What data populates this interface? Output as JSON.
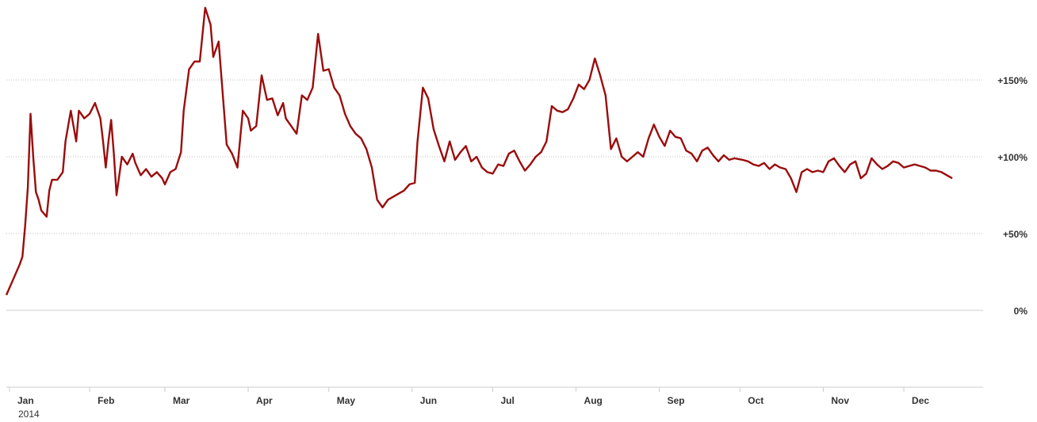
{
  "chart_data": {
    "type": "line",
    "year_label": "2014",
    "x_tick_labels": [
      "Jan",
      "Feb",
      "Mar",
      "Apr",
      "May",
      "Jun",
      "Jul",
      "Aug",
      "Sep",
      "Oct",
      "Nov",
      "Dec"
    ],
    "y_tick_labels": [
      "+150%",
      "+100%",
      "+50%",
      "0%"
    ],
    "y_ticks": [
      150,
      100,
      50,
      0
    ],
    "ylim": [
      -50,
      197
    ],
    "xlim": [
      "2014-01-01",
      "2014-12-24"
    ],
    "grid": "dotted horizontal",
    "series": [
      {
        "color": "#9b0c0c",
        "points": [
          [
            "2014-01-01",
            10
          ],
          [
            "2014-01-04",
            22
          ],
          [
            "2014-01-06",
            30
          ],
          [
            "2014-01-07",
            35
          ],
          [
            "2014-01-08",
            55
          ],
          [
            "2014-01-09",
            80
          ],
          [
            "2014-01-10",
            128
          ],
          [
            "2014-01-11",
            100
          ],
          [
            "2014-01-12",
            77
          ],
          [
            "2014-01-13",
            72
          ],
          [
            "2014-01-14",
            65
          ],
          [
            "2014-01-16",
            61
          ],
          [
            "2014-01-17",
            78
          ],
          [
            "2014-01-18",
            85
          ],
          [
            "2014-01-20",
            85
          ],
          [
            "2014-01-22",
            90
          ],
          [
            "2014-01-23",
            110
          ],
          [
            "2014-01-25",
            130
          ],
          [
            "2014-01-27",
            110
          ],
          [
            "2014-01-28",
            130
          ],
          [
            "2014-01-30",
            125
          ],
          [
            "2014-02-01",
            128
          ],
          [
            "2014-02-03",
            135
          ],
          [
            "2014-02-05",
            125
          ],
          [
            "2014-02-06",
            110
          ],
          [
            "2014-02-07",
            93
          ],
          [
            "2014-02-08",
            110
          ],
          [
            "2014-02-09",
            124
          ],
          [
            "2014-02-10",
            102
          ],
          [
            "2014-02-11",
            75
          ],
          [
            "2014-02-13",
            100
          ],
          [
            "2014-02-15",
            95
          ],
          [
            "2014-02-17",
            102
          ],
          [
            "2014-02-18",
            96
          ],
          [
            "2014-02-20",
            88
          ],
          [
            "2014-02-22",
            92
          ],
          [
            "2014-02-24",
            87
          ],
          [
            "2014-02-26",
            90
          ],
          [
            "2014-02-28",
            86
          ],
          [
            "2014-03-01",
            82
          ],
          [
            "2014-03-03",
            90
          ],
          [
            "2014-03-05",
            92
          ],
          [
            "2014-03-07",
            103
          ],
          [
            "2014-03-08",
            130
          ],
          [
            "2014-03-10",
            157
          ],
          [
            "2014-03-12",
            162
          ],
          [
            "2014-03-14",
            162
          ],
          [
            "2014-03-16",
            197
          ],
          [
            "2014-03-18",
            186
          ],
          [
            "2014-03-19",
            165
          ],
          [
            "2014-03-21",
            175
          ],
          [
            "2014-03-24",
            108
          ],
          [
            "2014-03-26",
            102
          ],
          [
            "2014-03-28",
            93
          ],
          [
            "2014-03-30",
            130
          ],
          [
            "2014-04-01",
            125
          ],
          [
            "2014-04-02",
            117
          ],
          [
            "2014-04-04",
            120
          ],
          [
            "2014-04-06",
            153
          ],
          [
            "2014-04-08",
            137
          ],
          [
            "2014-04-10",
            138
          ],
          [
            "2014-04-12",
            127
          ],
          [
            "2014-04-14",
            135
          ],
          [
            "2014-04-15",
            125
          ],
          [
            "2014-04-17",
            120
          ],
          [
            "2014-04-19",
            115
          ],
          [
            "2014-04-21",
            140
          ],
          [
            "2014-04-23",
            137
          ],
          [
            "2014-04-25",
            145
          ],
          [
            "2014-04-27",
            180
          ],
          [
            "2014-04-29",
            156
          ],
          [
            "2014-05-01",
            157
          ],
          [
            "2014-05-03",
            145
          ],
          [
            "2014-05-05",
            140
          ],
          [
            "2014-05-07",
            128
          ],
          [
            "2014-05-09",
            120
          ],
          [
            "2014-05-11",
            115
          ],
          [
            "2014-05-13",
            112
          ],
          [
            "2014-05-15",
            105
          ],
          [
            "2014-05-17",
            93
          ],
          [
            "2014-05-19",
            72
          ],
          [
            "2014-05-21",
            67
          ],
          [
            "2014-05-23",
            72
          ],
          [
            "2014-05-25",
            74
          ],
          [
            "2014-05-27",
            76
          ],
          [
            "2014-05-29",
            78
          ],
          [
            "2014-05-31",
            82
          ],
          [
            "2014-06-02",
            83
          ],
          [
            "2014-06-03",
            110
          ],
          [
            "2014-06-05",
            145
          ],
          [
            "2014-06-07",
            138
          ],
          [
            "2014-06-09",
            118
          ],
          [
            "2014-06-11",
            107
          ],
          [
            "2014-06-13",
            97
          ],
          [
            "2014-06-15",
            110
          ],
          [
            "2014-06-17",
            98
          ],
          [
            "2014-06-19",
            103
          ],
          [
            "2014-06-21",
            107
          ],
          [
            "2014-06-23",
            97
          ],
          [
            "2014-06-25",
            100
          ],
          [
            "2014-06-27",
            93
          ],
          [
            "2014-06-29",
            90
          ],
          [
            "2014-07-01",
            89
          ],
          [
            "2014-07-03",
            95
          ],
          [
            "2014-07-05",
            94
          ],
          [
            "2014-07-07",
            102
          ],
          [
            "2014-07-09",
            104
          ],
          [
            "2014-07-11",
            97
          ],
          [
            "2014-07-13",
            91
          ],
          [
            "2014-07-15",
            95
          ],
          [
            "2014-07-17",
            100
          ],
          [
            "2014-07-19",
            103
          ],
          [
            "2014-07-21",
            110
          ],
          [
            "2014-07-23",
            133
          ],
          [
            "2014-07-25",
            130
          ],
          [
            "2014-07-27",
            129
          ],
          [
            "2014-07-29",
            131
          ],
          [
            "2014-07-31",
            138
          ],
          [
            "2014-08-02",
            147
          ],
          [
            "2014-08-04",
            144
          ],
          [
            "2014-08-06",
            150
          ],
          [
            "2014-08-08",
            164
          ],
          [
            "2014-08-10",
            153
          ],
          [
            "2014-08-12",
            140
          ],
          [
            "2014-08-14",
            105
          ],
          [
            "2014-08-16",
            112
          ],
          [
            "2014-08-18",
            100
          ],
          [
            "2014-08-20",
            97
          ],
          [
            "2014-08-22",
            100
          ],
          [
            "2014-08-24",
            103
          ],
          [
            "2014-08-26",
            100
          ],
          [
            "2014-08-28",
            112
          ],
          [
            "2014-08-30",
            121
          ],
          [
            "2014-09-01",
            113
          ],
          [
            "2014-09-03",
            107
          ],
          [
            "2014-09-05",
            117
          ],
          [
            "2014-09-07",
            113
          ],
          [
            "2014-09-09",
            112
          ],
          [
            "2014-09-11",
            104
          ],
          [
            "2014-09-13",
            102
          ],
          [
            "2014-09-15",
            97
          ],
          [
            "2014-09-17",
            104
          ],
          [
            "2014-09-19",
            106
          ],
          [
            "2014-09-21",
            101
          ],
          [
            "2014-09-23",
            97
          ],
          [
            "2014-09-25",
            101
          ],
          [
            "2014-09-27",
            98
          ],
          [
            "2014-09-29",
            99
          ],
          [
            "2014-10-02",
            98
          ],
          [
            "2014-10-04",
            97
          ],
          [
            "2014-10-06",
            95
          ],
          [
            "2014-10-08",
            94
          ],
          [
            "2014-10-10",
            96
          ],
          [
            "2014-10-12",
            92
          ],
          [
            "2014-10-14",
            95
          ],
          [
            "2014-10-16",
            93
          ],
          [
            "2014-10-18",
            92
          ],
          [
            "2014-10-20",
            86
          ],
          [
            "2014-10-22",
            77
          ],
          [
            "2014-10-24",
            90
          ],
          [
            "2014-10-26",
            92
          ],
          [
            "2014-10-28",
            90
          ],
          [
            "2014-10-30",
            91
          ],
          [
            "2014-11-01",
            90
          ],
          [
            "2014-11-03",
            97
          ],
          [
            "2014-11-05",
            99
          ],
          [
            "2014-11-07",
            94
          ],
          [
            "2014-11-09",
            90
          ],
          [
            "2014-11-11",
            95
          ],
          [
            "2014-11-13",
            97
          ],
          [
            "2014-11-15",
            86
          ],
          [
            "2014-11-17",
            89
          ],
          [
            "2014-11-19",
            99
          ],
          [
            "2014-11-21",
            95
          ],
          [
            "2014-11-23",
            92
          ],
          [
            "2014-11-25",
            94
          ],
          [
            "2014-11-27",
            97
          ],
          [
            "2014-11-29",
            96
          ],
          [
            "2014-12-01",
            93
          ],
          [
            "2014-12-03",
            94
          ],
          [
            "2014-12-05",
            95
          ],
          [
            "2014-12-07",
            94
          ],
          [
            "2014-12-09",
            93
          ],
          [
            "2014-12-11",
            91
          ],
          [
            "2014-12-13",
            91
          ],
          [
            "2014-12-15",
            90
          ],
          [
            "2014-12-17",
            88
          ],
          [
            "2014-12-19",
            86
          ]
        ]
      },
      {
        "color": "#9fc3dc",
        "points": []
      }
    ]
  }
}
